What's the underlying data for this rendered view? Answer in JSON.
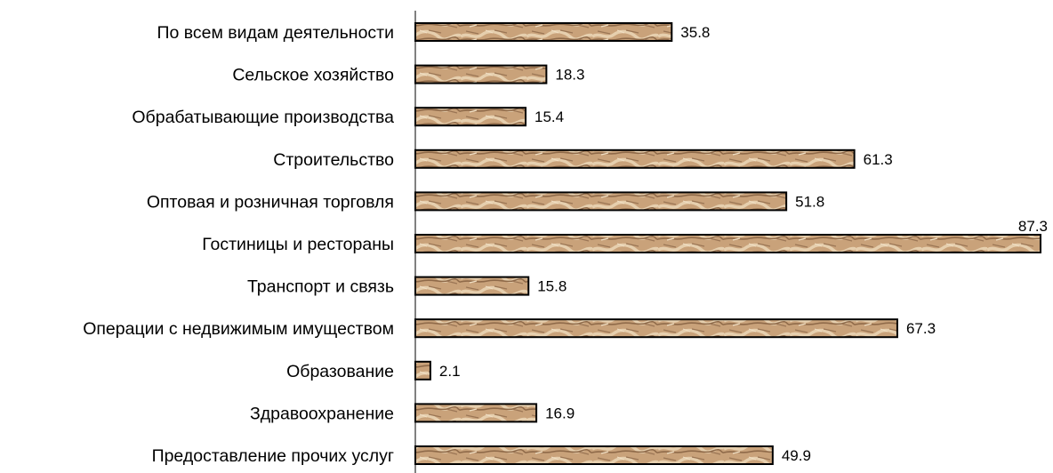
{
  "chart_data": {
    "type": "bar",
    "orientation": "horizontal",
    "categories": [
      "По всем видам деятельности",
      "Сельское хозяйство",
      "Обрабатывающие производства",
      "Строительство",
      "Оптовая и розничная торговля",
      "Гостиницы и рестораны",
      "Транспорт и связь",
      "Операции с недвижимым имуществом",
      "Образование",
      "Здравоохранение",
      "Предоставление прочих услуг"
    ],
    "values": [
      35.8,
      18.3,
      15.4,
      61.3,
      51.8,
      87.3,
      15.8,
      67.3,
      2.1,
      16.9,
      49.9
    ],
    "value_labels": [
      "35.8",
      "18.3",
      "15.4",
      "61.3",
      "51.8",
      "87.3",
      "15.8",
      "67.3",
      "2.1",
      "16.9",
      "49.9"
    ],
    "xlim": [
      0,
      87.3
    ],
    "grid": false,
    "legend": "none",
    "colors": {
      "bar_base": "#c9a27a",
      "bar_light": "#e3c9a6",
      "bar_dark": "#8a6242",
      "bar_outline": "#000000",
      "axis": "#000000"
    }
  }
}
